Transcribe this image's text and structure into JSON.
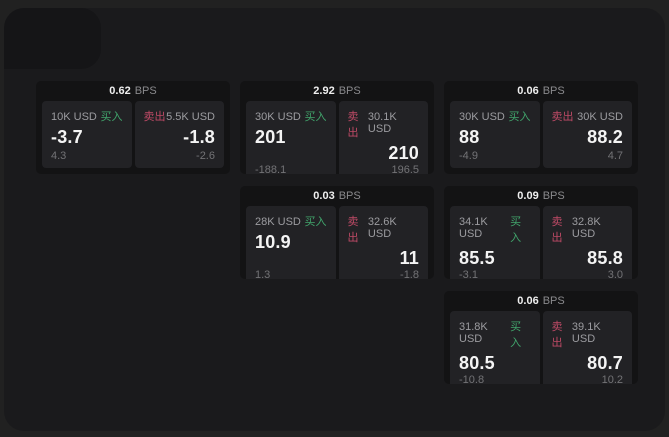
{
  "labels": {
    "bps_unit": "BPS",
    "buy": "买入",
    "sell": "卖出"
  },
  "colors": {
    "buy": "#41a56c",
    "sell": "#bf4a66",
    "page_bg": "#1a1a1c",
    "card_bg": "#131314",
    "panel_bg": "#222225",
    "corner_bg": "#151517"
  },
  "cards": [
    {
      "bps": "0.62",
      "buy": {
        "amount": "10K USD",
        "price": "-3.7",
        "sub": "4.3"
      },
      "sell": {
        "amount": "5.5K USD",
        "price": "-1.8",
        "sub": "-2.6"
      }
    },
    {
      "bps": "2.92",
      "buy": {
        "amount": "30K USD",
        "price": "201",
        "sub": "-188.1"
      },
      "sell": {
        "amount": "30.1K USD",
        "price": "210",
        "sub": "196.5"
      }
    },
    {
      "bps": "0.06",
      "buy": {
        "amount": "30K USD",
        "price": "88",
        "sub": "-4.9"
      },
      "sell": {
        "amount": "30K USD",
        "price": "88.2",
        "sub": "4.7"
      }
    },
    {
      "bps": "0.03",
      "buy": {
        "amount": "28K USD",
        "price": "10.9",
        "sub": "1.3"
      },
      "sell": {
        "amount": "32.6K USD",
        "price": "11",
        "sub": "-1.8"
      }
    },
    {
      "bps": "0.09",
      "buy": {
        "amount": "34.1K USD",
        "price": "85.5",
        "sub": "-3.1"
      },
      "sell": {
        "amount": "32.8K USD",
        "price": "85.8",
        "sub": "3.0"
      }
    },
    {
      "bps": "0.06",
      "buy": {
        "amount": "31.8K USD",
        "price": "80.5",
        "sub": "-10.8"
      },
      "sell": {
        "amount": "39.1K USD",
        "price": "80.7",
        "sub": "10.2"
      }
    }
  ]
}
